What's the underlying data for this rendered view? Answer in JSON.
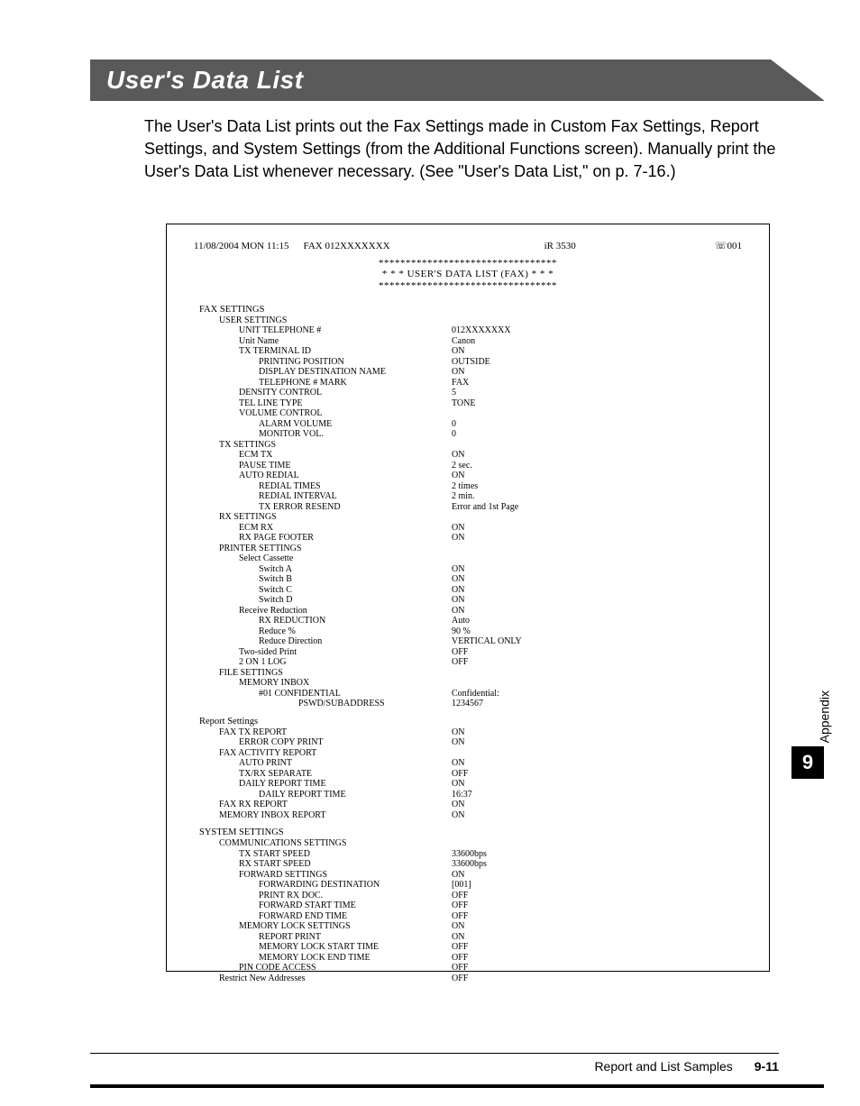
{
  "title": "User's Data List",
  "intro": "The User's Data List prints out the Fax Settings made in Custom Fax Settings, Report Settings, and System Settings (from the Additional Functions screen). Manually print the User's Data List whenever necessary. (See \"User's Data List,\" on p. 7-16.)",
  "report": {
    "header_date": "11/08/2004 MON 11:15",
    "header_fax": "FAX 012XXXXXXX",
    "header_model": "iR 3530",
    "header_page_icon": "☏",
    "header_page": "001",
    "stars_line": "*********************************",
    "title_line": "* * *    USER'S DATA LIST (FAX)    * * *",
    "rows": [
      {
        "t": "h",
        "lvl": 0,
        "label": "FAX SETTINGS"
      },
      {
        "t": "h",
        "lvl": 1,
        "label": "USER SETTINGS"
      },
      {
        "t": "r",
        "lvl": 2,
        "label": "UNIT TELEPHONE #",
        "value": "012XXXXXXX"
      },
      {
        "t": "r",
        "lvl": 2,
        "label": "Unit Name",
        "value": "Canon"
      },
      {
        "t": "r",
        "lvl": 2,
        "label": "TX TERMINAL ID",
        "value": "ON"
      },
      {
        "t": "r",
        "lvl": 3,
        "label": "PRINTING POSITION",
        "value": "OUTSIDE"
      },
      {
        "t": "r",
        "lvl": 3,
        "label": "DISPLAY DESTINATION NAME",
        "value": "ON"
      },
      {
        "t": "r",
        "lvl": 3,
        "label": "TELEPHONE # MARK",
        "value": "FAX"
      },
      {
        "t": "r",
        "lvl": 2,
        "label": "DENSITY CONTROL",
        "value": "5"
      },
      {
        "t": "r",
        "lvl": 2,
        "label": "TEL LINE TYPE",
        "value": "TONE"
      },
      {
        "t": "h",
        "lvl": 2,
        "label": "VOLUME CONTROL"
      },
      {
        "t": "r",
        "lvl": 3,
        "label": "ALARM VOLUME",
        "value": "0"
      },
      {
        "t": "r",
        "lvl": 3,
        "label": "MONITOR VOL.",
        "value": "0"
      },
      {
        "t": "h",
        "lvl": 1,
        "label": "TX SETTINGS"
      },
      {
        "t": "r",
        "lvl": 2,
        "label": "ECM TX",
        "value": "ON"
      },
      {
        "t": "r",
        "lvl": 2,
        "label": "PAUSE TIME",
        "value": "2 sec."
      },
      {
        "t": "r",
        "lvl": 2,
        "label": "AUTO REDIAL",
        "value": "ON"
      },
      {
        "t": "r",
        "lvl": 3,
        "label": "REDIAL TIMES",
        "value": "2 times"
      },
      {
        "t": "r",
        "lvl": 3,
        "label": "REDIAL INTERVAL",
        "value": "2 min."
      },
      {
        "t": "r",
        "lvl": 3,
        "label": "TX ERROR RESEND",
        "value": "Error and 1st Page"
      },
      {
        "t": "h",
        "lvl": 1,
        "label": "RX SETTINGS"
      },
      {
        "t": "r",
        "lvl": 2,
        "label": "ECM RX",
        "value": "ON"
      },
      {
        "t": "r",
        "lvl": 2,
        "label": "RX PAGE FOOTER",
        "value": "ON"
      },
      {
        "t": "h",
        "lvl": 1,
        "label": "PRINTER SETTINGS"
      },
      {
        "t": "h",
        "lvl": 2,
        "label": "Select Cassette"
      },
      {
        "t": "r",
        "lvl": 3,
        "label": "Switch A",
        "value": "ON"
      },
      {
        "t": "r",
        "lvl": 3,
        "label": "Switch B",
        "value": "ON"
      },
      {
        "t": "r",
        "lvl": 3,
        "label": "Switch C",
        "value": "ON"
      },
      {
        "t": "r",
        "lvl": 3,
        "label": "Switch D",
        "value": "ON"
      },
      {
        "t": "r",
        "lvl": 2,
        "label": "Receive Reduction",
        "value": "ON"
      },
      {
        "t": "r",
        "lvl": 3,
        "label": "RX REDUCTION",
        "value": "Auto"
      },
      {
        "t": "r",
        "lvl": 3,
        "label": "Reduce %",
        "value": "90 %"
      },
      {
        "t": "r",
        "lvl": 3,
        "label": "Reduce Direction",
        "value": "VERTICAL ONLY"
      },
      {
        "t": "r",
        "lvl": 2,
        "label": "Two-sided Print",
        "value": "OFF"
      },
      {
        "t": "r",
        "lvl": 2,
        "label": "2 ON 1 LOG",
        "value": "OFF"
      },
      {
        "t": "h",
        "lvl": 1,
        "label": "FILE SETTINGS"
      },
      {
        "t": "h",
        "lvl": 2,
        "label": "MEMORY INBOX"
      },
      {
        "t": "r",
        "lvl": 3,
        "label": "#01    CONFIDENTIAL",
        "value": "Confidential:"
      },
      {
        "t": "r",
        "lvl": 5,
        "label": "PSWD/SUBADDRESS",
        "value": "1234567"
      },
      {
        "t": "gap"
      },
      {
        "t": "h",
        "lvl": 0,
        "label": "Report Settings"
      },
      {
        "t": "r",
        "lvl": 1,
        "label": "FAX TX REPORT",
        "value": "ON"
      },
      {
        "t": "r",
        "lvl": 2,
        "label": "ERROR COPY PRINT",
        "value": "ON"
      },
      {
        "t": "h",
        "lvl": 1,
        "label": "FAX ACTIVITY REPORT"
      },
      {
        "t": "r",
        "lvl": 2,
        "label": "AUTO PRINT",
        "value": "ON"
      },
      {
        "t": "r",
        "lvl": 2,
        "label": "TX/RX SEPARATE",
        "value": "OFF"
      },
      {
        "t": "r",
        "lvl": 2,
        "label": "DAILY REPORT TIME",
        "value": "ON"
      },
      {
        "t": "r",
        "lvl": 3,
        "label": "DAILY REPORT TIME",
        "value": "16:37"
      },
      {
        "t": "r",
        "lvl": 1,
        "label": "FAX RX REPORT",
        "value": "ON"
      },
      {
        "t": "r",
        "lvl": 1,
        "label": "MEMORY INBOX REPORT",
        "value": "ON"
      },
      {
        "t": "gap"
      },
      {
        "t": "h",
        "lvl": 0,
        "label": "SYSTEM SETTINGS"
      },
      {
        "t": "h",
        "lvl": 1,
        "label": "COMMUNICATIONS SETTINGS"
      },
      {
        "t": "r",
        "lvl": 2,
        "label": "TX START SPEED",
        "value": "33600bps"
      },
      {
        "t": "r",
        "lvl": 2,
        "label": "RX START SPEED",
        "value": "33600bps"
      },
      {
        "t": "r",
        "lvl": 2,
        "label": "FORWARD SETTINGS",
        "value": "ON"
      },
      {
        "t": "r",
        "lvl": 3,
        "label": "FORWARDING DESTINATION",
        "value": "[001]"
      },
      {
        "t": "r",
        "lvl": 3,
        "label": "PRINT RX DOC.",
        "value": "OFF"
      },
      {
        "t": "r",
        "lvl": 3,
        "label": "FORWARD START TIME",
        "value": "OFF"
      },
      {
        "t": "r",
        "lvl": 3,
        "label": "FORWARD END TIME",
        "value": "OFF"
      },
      {
        "t": "r",
        "lvl": 2,
        "label": "MEMORY LOCK SETTINGS",
        "value": "ON"
      },
      {
        "t": "r",
        "lvl": 3,
        "label": "REPORT PRINT",
        "value": "ON"
      },
      {
        "t": "r",
        "lvl": 3,
        "label": "MEMORY LOCK START TIME",
        "value": "OFF"
      },
      {
        "t": "r",
        "lvl": 3,
        "label": "MEMORY LOCK END TIME",
        "value": "OFF"
      },
      {
        "t": "r",
        "lvl": 2,
        "label": "PIN CODE ACCESS",
        "value": "OFF"
      },
      {
        "t": "r",
        "lvl": 1,
        "label": "Restrict New Addresses",
        "value": "OFF"
      }
    ]
  },
  "side": {
    "label": "Appendix",
    "chapter": "9"
  },
  "footer": {
    "text": "Report and List Samples",
    "page": "9-11"
  }
}
